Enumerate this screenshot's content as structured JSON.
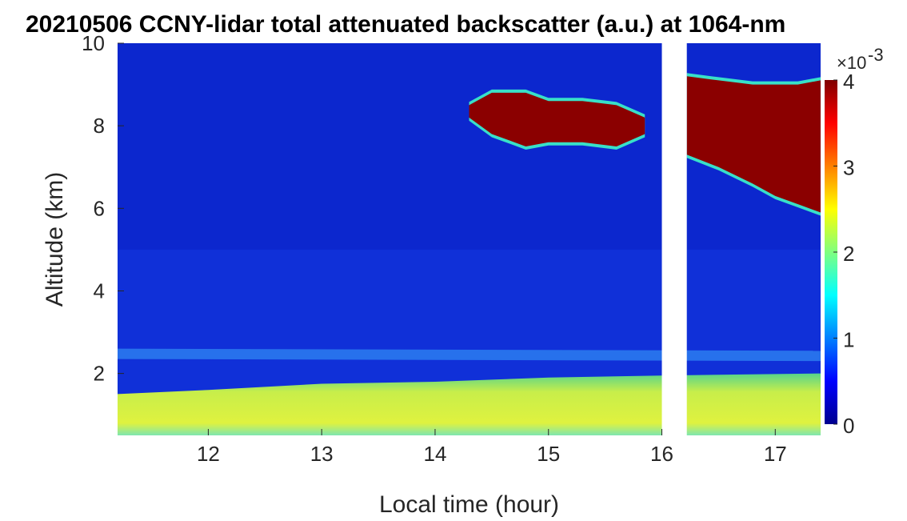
{
  "chart_data": {
    "type": "heatmap",
    "title": "20210506 CCNY-lidar total attenuated backscatter (a.u.) at 1064-nm",
    "xlabel": "Local time (hour)",
    "ylabel": "Altitude (km)",
    "xlim": [
      11.2,
      17.4
    ],
    "ylim": [
      0.5,
      10
    ],
    "x_ticks": [
      "12",
      "13",
      "14",
      "15",
      "16",
      "17"
    ],
    "y_ticks": [
      "2",
      "4",
      "6",
      "8",
      "10"
    ],
    "colorbar": {
      "colormap": "jet",
      "clim": [
        0,
        0.004
      ],
      "ticks": [
        "0",
        "1",
        "2",
        "3",
        "4"
      ],
      "multiplier_base": "×10",
      "multiplier_exponent": "-3"
    },
    "data_gap": [
      16.0,
      16.22
    ],
    "features": {
      "boundary_layer": {
        "top_km": [
          [
            11.2,
            1.5
          ],
          [
            12.0,
            1.6
          ],
          [
            13.0,
            1.75
          ],
          [
            14.0,
            1.8
          ],
          [
            15.0,
            1.9
          ],
          [
            16.0,
            1.95
          ],
          [
            17.4,
            2.0
          ]
        ],
        "value": 0.0024
      },
      "aerosol_layer_km": [
        2.3,
        2.6
      ],
      "cirrus_1": {
        "x": [
          14.3,
          14.5,
          14.8,
          15.0,
          15.3,
          15.6,
          15.85
        ],
        "top_km": [
          8.5,
          8.8,
          8.8,
          8.6,
          8.6,
          8.5,
          8.2
        ],
        "base_km": [
          8.2,
          7.8,
          7.5,
          7.6,
          7.6,
          7.5,
          7.8
        ]
      },
      "cirrus_2": {
        "x": [
          16.22,
          16.5,
          16.8,
          17.0,
          17.2,
          17.4
        ],
        "top_km": [
          9.2,
          9.1,
          9.0,
          9.0,
          9.0,
          9.1
        ],
        "base_km": [
          7.3,
          7.0,
          6.6,
          6.3,
          6.1,
          5.9
        ]
      }
    }
  }
}
